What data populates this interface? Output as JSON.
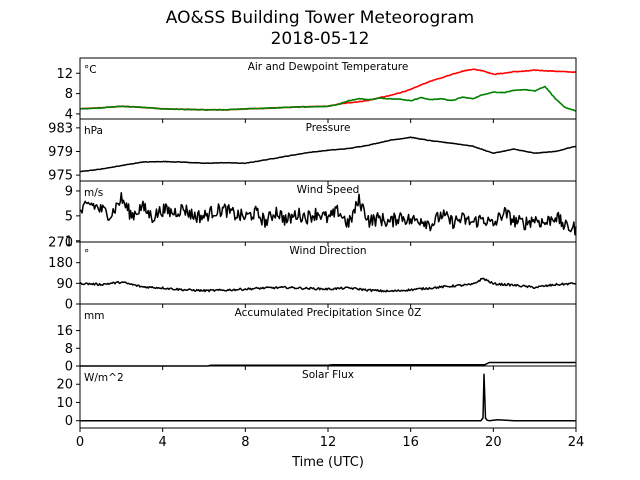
{
  "title_line1": "AO&SS Building Tower Meteorogram",
  "title_line2": "2018-05-12",
  "xlabel": "Time (UTC)",
  "colors": {
    "temperature": "#ff0000",
    "dewpoint": "#008000",
    "default_line": "#000000"
  },
  "chart_data": [
    {
      "type": "line",
      "title": "Air and Dewpoint Temperature",
      "unit_label": "°C",
      "xlim": [
        0,
        24
      ],
      "ylim": [
        3,
        15
      ],
      "yticks": [
        4,
        8,
        12
      ],
      "xticks": [
        0,
        4,
        8,
        12,
        16,
        20,
        24
      ],
      "series": [
        {
          "x": [
            0,
            1,
            2,
            3,
            4,
            5,
            6,
            7,
            8,
            9,
            10,
            11,
            12,
            12.5,
            13,
            13.5,
            14,
            14.5,
            15,
            15.5,
            16,
            16.5,
            17,
            17.5,
            18,
            18.5,
            19,
            19.5,
            20,
            20.5,
            21,
            21.5,
            22,
            22.5,
            23,
            23.5,
            24
          ],
          "values": [
            5.0,
            5.2,
            5.5,
            5.3,
            5.0,
            4.9,
            4.8,
            4.8,
            5.0,
            5.1,
            5.3,
            5.4,
            5.5,
            5.9,
            6.2,
            6.4,
            6.7,
            7.2,
            7.6,
            8.2,
            8.8,
            9.7,
            10.5,
            11.1,
            11.8,
            12.4,
            12.8,
            12.5,
            11.8,
            12.0,
            12.3,
            12.4,
            12.6,
            12.5,
            12.4,
            12.3,
            12.2
          ]
        },
        {
          "x": [
            0,
            1,
            2,
            3,
            4,
            5,
            6,
            7,
            8,
            9,
            10,
            11,
            12,
            12.5,
            13,
            13.5,
            14,
            14.5,
            15,
            15.5,
            16,
            16.5,
            17,
            17.5,
            18,
            18.5,
            19,
            19.5,
            20,
            20.5,
            21,
            21.5,
            22,
            22.5,
            23,
            23.5,
            24
          ],
          "values": [
            5.0,
            5.2,
            5.5,
            5.3,
            5.0,
            4.9,
            4.8,
            4.8,
            5.0,
            5.1,
            5.3,
            5.4,
            5.5,
            5.9,
            6.6,
            7.0,
            6.8,
            7.1,
            7.0,
            6.9,
            6.6,
            7.2,
            6.8,
            7.0,
            6.6,
            7.3,
            7.0,
            7.8,
            8.3,
            8.2,
            8.6,
            8.8,
            8.5,
            9.4,
            7.0,
            5.2,
            4.6
          ]
        }
      ]
    },
    {
      "type": "line",
      "title": "Pressure",
      "unit_label": "hPa",
      "xlim": [
        0,
        24
      ],
      "ylim": [
        974,
        984.5
      ],
      "yticks": [
        975,
        979,
        983
      ],
      "xticks": [
        0,
        4,
        8,
        12,
        16,
        20,
        24
      ],
      "series": [
        {
          "x": [
            0,
            1,
            2,
            3,
            4,
            5,
            6,
            7,
            8,
            9,
            10,
            11,
            12,
            13,
            14,
            15,
            16,
            17,
            18,
            19,
            20,
            21,
            22,
            23,
            24
          ],
          "values": [
            975.6,
            976.0,
            976.6,
            977.2,
            977.3,
            977.2,
            977.0,
            977.1,
            977.0,
            977.6,
            978.2,
            978.8,
            979.2,
            979.5,
            980.1,
            980.9,
            981.4,
            980.8,
            980.4,
            979.9,
            978.7,
            979.4,
            978.7,
            979.0,
            979.9
          ]
        }
      ]
    },
    {
      "type": "line",
      "title": "Wind Speed",
      "unit_label": "m/s",
      "xlim": [
        0,
        24
      ],
      "ylim": [
        0.8,
        10.6
      ],
      "yticks": [
        1,
        5,
        9
      ],
      "xticks": [
        0,
        4,
        8,
        12,
        16,
        20,
        24
      ],
      "series": [
        {
          "x": [
            0,
            0.5,
            1,
            1.5,
            2,
            2.5,
            3,
            3.5,
            4,
            4.5,
            5,
            5.5,
            6,
            6.5,
            7,
            7.5,
            8,
            8.5,
            9,
            9.5,
            10,
            10.5,
            11,
            11.5,
            12,
            12.5,
            13,
            13.5,
            14,
            14.5,
            15,
            15.5,
            16,
            16.5,
            17,
            17.5,
            18,
            18.5,
            19,
            19.5,
            20,
            20.5,
            21,
            21.5,
            22,
            22.5,
            23,
            23.5,
            24
          ],
          "values": [
            5.5,
            7.0,
            6.0,
            5.2,
            7.8,
            5.0,
            6.5,
            4.8,
            6.0,
            5.5,
            6.2,
            5.0,
            4.9,
            5.8,
            6.0,
            5.2,
            4.8,
            5.5,
            4.0,
            5.8,
            4.2,
            5.3,
            4.8,
            5.5,
            4.5,
            5.8,
            3.6,
            7.5,
            4.2,
            4.6,
            3.9,
            5.0,
            4.2,
            4.5,
            3.6,
            5.2,
            4.0,
            4.5,
            3.9,
            4.6,
            3.5,
            5.6,
            4.2,
            3.8,
            4.5,
            3.8,
            5.0,
            3.2,
            3.0
          ]
        }
      ]
    },
    {
      "type": "line",
      "title": "Wind Direction",
      "unit_label": "°",
      "xlim": [
        0,
        24
      ],
      "ylim": [
        0,
        270
      ],
      "yticks": [
        0,
        90,
        180,
        270
      ],
      "xticks": [
        0,
        4,
        8,
        12,
        16,
        20,
        24
      ],
      "series": [
        {
          "x": [
            0,
            1,
            2,
            3,
            4,
            5,
            6,
            7,
            8,
            9,
            10,
            11,
            12,
            13,
            14,
            15,
            16,
            17,
            18,
            19,
            19.5,
            20,
            21,
            22,
            23,
            24
          ],
          "values": [
            90,
            85,
            95,
            75,
            70,
            62,
            58,
            60,
            65,
            70,
            72,
            68,
            65,
            70,
            60,
            55,
            62,
            70,
            78,
            85,
            112,
            88,
            82,
            72,
            84,
            90
          ]
        }
      ]
    },
    {
      "type": "line",
      "title": "Accumulated Precipitation Since 0Z",
      "unit_label": "mm",
      "xlim": [
        0,
        24
      ],
      "ylim": [
        0,
        28
      ],
      "yticks": [
        0,
        8,
        16
      ],
      "xticks": [
        0,
        4,
        8,
        12,
        16,
        20,
        24
      ],
      "series": [
        {
          "x": [
            0,
            6.2,
            6.3,
            12,
            12.2,
            19.6,
            19.8,
            24
          ],
          "values": [
            0.0,
            0.0,
            0.3,
            0.3,
            0.6,
            0.6,
            1.6,
            1.6
          ]
        }
      ]
    },
    {
      "type": "line",
      "title": "Solar Flux",
      "unit_label": "W/m^2",
      "xlim": [
        0,
        24
      ],
      "ylim": [
        -4,
        30
      ],
      "yticks": [
        0,
        10,
        20
      ],
      "xticks": [
        0,
        4,
        8,
        12,
        16,
        20,
        24
      ],
      "series": [
        {
          "x": [
            0,
            19.4,
            19.5,
            19.55,
            19.62,
            19.7,
            19.8,
            20.2,
            20.6,
            21,
            24
          ],
          "values": [
            0,
            0,
            1.5,
            25.5,
            1.5,
            0.3,
            0,
            0.5,
            0.3,
            0,
            0
          ]
        }
      ]
    }
  ]
}
